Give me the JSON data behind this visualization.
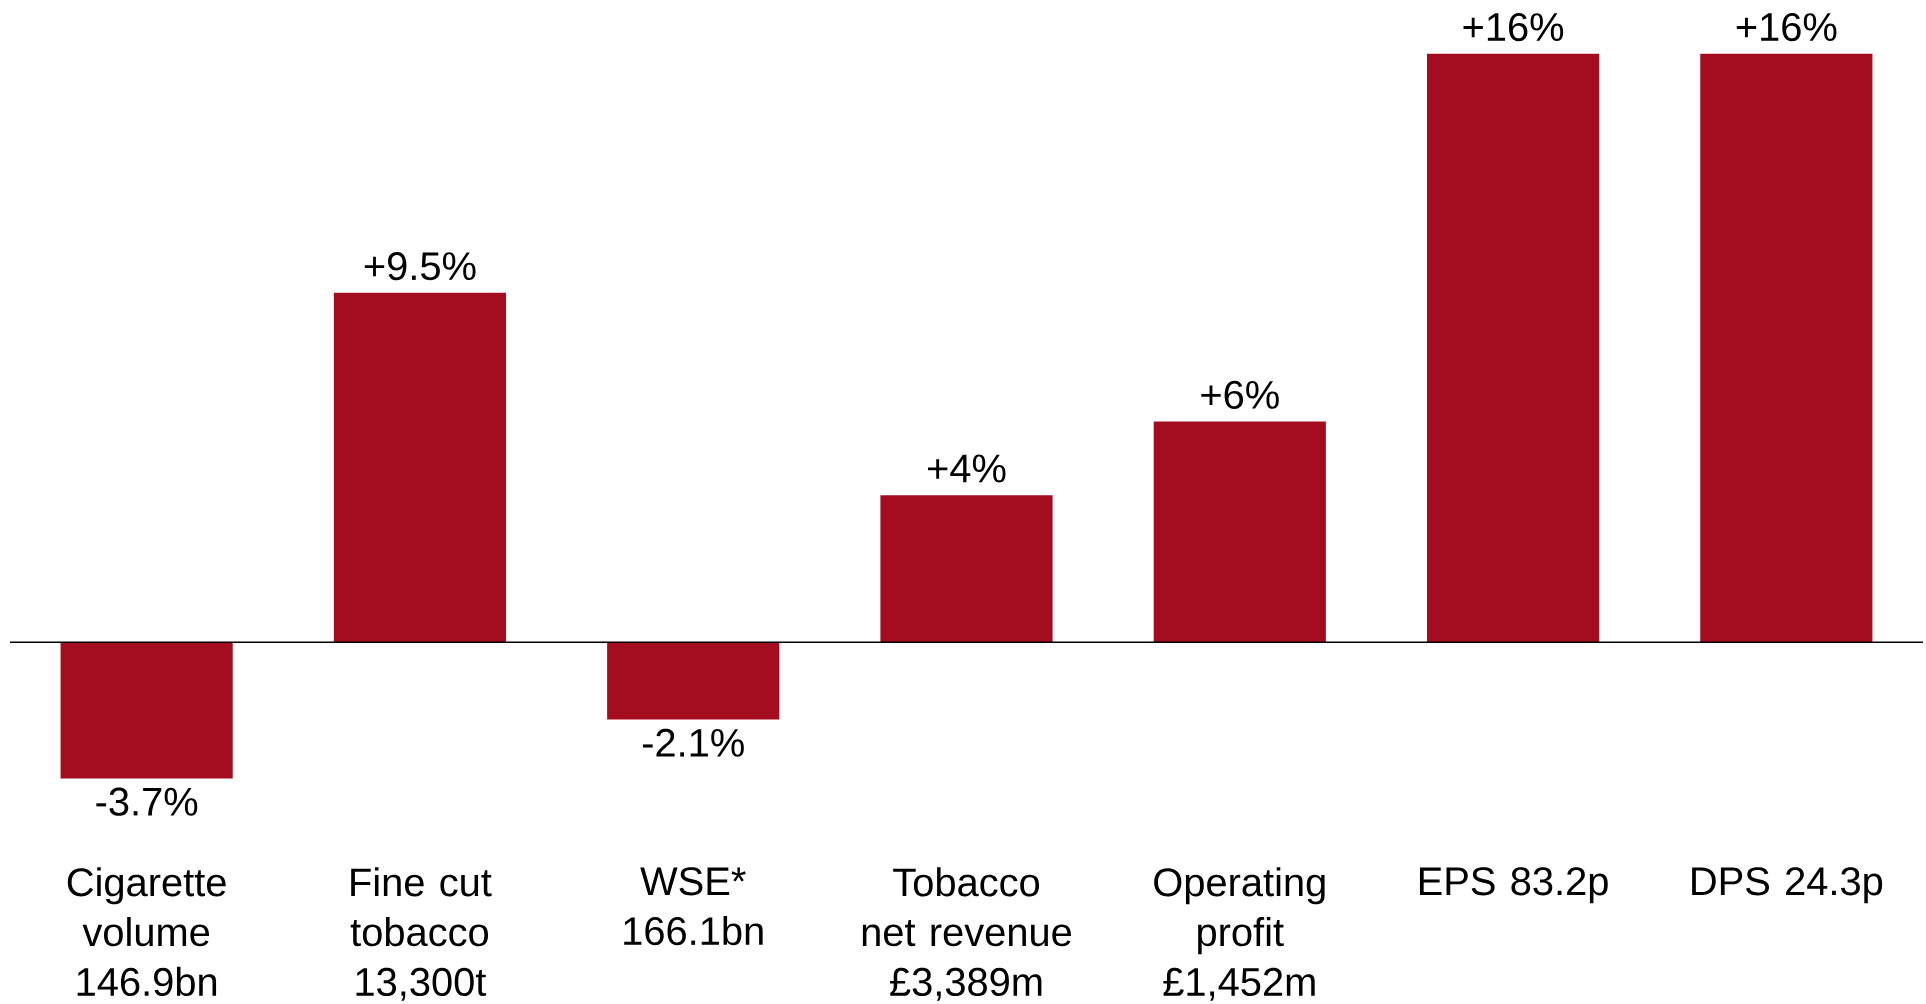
{
  "chart_data": {
    "type": "bar",
    "categories": [
      "Cigarette volume 146.9bn",
      "Fine cut tobacco 13,300t",
      "WSE* 166.1bn",
      "Tobacco net revenue £3,389m",
      "Operating profit £1,452m",
      "EPS 83.2p",
      "DPS 24.3p"
    ],
    "values": [
      -3.7,
      9.5,
      -2.1,
      4,
      6,
      16,
      16
    ],
    "value_labels": [
      "-3.7%",
      "+9.5%",
      "-2.1%",
      "+4%",
      "+6%",
      "+16%",
      "+16%"
    ],
    "color": "#a30d1f"
  }
}
